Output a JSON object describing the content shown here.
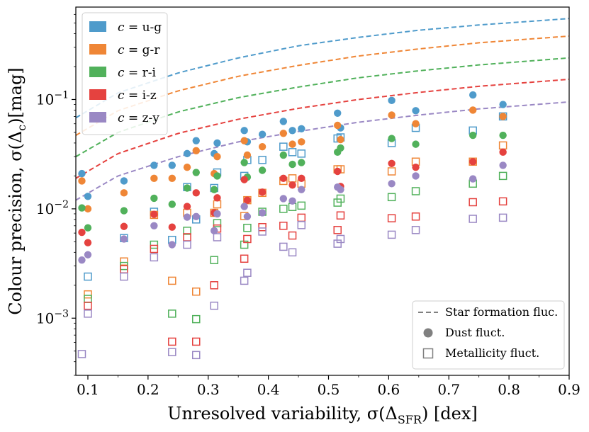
{
  "chart_data": {
    "type": "scatter",
    "xlabel": "Unresolved variability, σ(ΔSFR) [dex]",
    "xlabel_parts": {
      "prefix": "Unresolved variability, σ(Δ",
      "sub": "SFR",
      "suffix": ") [dex]"
    },
    "ylabel": "Colour precision, σ(Δc)[mag]",
    "ylabel_parts": {
      "prefix": "Colour precision, σ(Δ",
      "sub": "c",
      "suffix": ")[mag]"
    },
    "xlim": [
      0.08,
      0.9
    ],
    "ylim": [
      0.0003,
      0.7
    ],
    "yscale": "log",
    "x_ticks": [
      0.1,
      0.2,
      0.3,
      0.4,
      0.5,
      0.6,
      0.7,
      0.8,
      0.9
    ],
    "x_tick_labels": [
      "0.1",
      "0.2",
      "0.3",
      "0.4",
      "0.5",
      "0.6",
      "0.7",
      "0.8",
      "0.9"
    ],
    "y_ticks": [
      0.001,
      0.01,
      0.1
    ],
    "y_tick_labels": [
      {
        "base": "10",
        "exp": "−3"
      },
      {
        "base": "10",
        "exp": "−2"
      },
      {
        "base": "10",
        "exp": "−1"
      }
    ],
    "colors": {
      "u-g": "#4f9bcb",
      "g-r": "#ef8636",
      "r-i": "#51b15b",
      "i-z": "#e5423f",
      "z-y": "#9a88c4",
      "legend_line": "#808080"
    },
    "legend_top": {
      "position": "top-left",
      "entries": [
        {
          "key": "u-g",
          "prefix": "c",
          "text": " = u-g"
        },
        {
          "key": "g-r",
          "prefix": "c",
          "text": " = g-r"
        },
        {
          "key": "r-i",
          "prefix": "c",
          "text": " = r-i"
        },
        {
          "key": "i-z",
          "prefix": "c",
          "text": " = i-z"
        },
        {
          "key": "z-y",
          "prefix": "c",
          "text": " = z-y"
        }
      ]
    },
    "legend_bottom": {
      "position": "bottom-right",
      "entries": [
        {
          "marker": "dash",
          "label": "Star formation fluc."
        },
        {
          "marker": "circle",
          "label": "Dust fluct."
        },
        {
          "marker": "square",
          "label": "Metallicity fluct."
        }
      ]
    },
    "star_formation_curves": [
      {
        "key": "u-g",
        "x": [
          0.08,
          0.15,
          0.25,
          0.35,
          0.45,
          0.55,
          0.65,
          0.75,
          0.9
        ],
        "y": [
          0.068,
          0.115,
          0.175,
          0.24,
          0.31,
          0.37,
          0.43,
          0.48,
          0.55
        ]
      },
      {
        "key": "g-r",
        "x": [
          0.08,
          0.15,
          0.25,
          0.35,
          0.45,
          0.55,
          0.65,
          0.75,
          0.9
        ],
        "y": [
          0.047,
          0.079,
          0.12,
          0.163,
          0.205,
          0.25,
          0.29,
          0.33,
          0.38
        ]
      },
      {
        "key": "r-i",
        "x": [
          0.08,
          0.15,
          0.25,
          0.35,
          0.45,
          0.55,
          0.65,
          0.75,
          0.9
        ],
        "y": [
          0.03,
          0.05,
          0.077,
          0.104,
          0.13,
          0.158,
          0.183,
          0.207,
          0.24
        ]
      },
      {
        "key": "i-z",
        "x": [
          0.08,
          0.15,
          0.25,
          0.35,
          0.45,
          0.55,
          0.65,
          0.75,
          0.9
        ],
        "y": [
          0.019,
          0.032,
          0.049,
          0.066,
          0.083,
          0.1,
          0.116,
          0.132,
          0.153
        ]
      },
      {
        "key": "z-y",
        "x": [
          0.08,
          0.15,
          0.25,
          0.35,
          0.45,
          0.55,
          0.65,
          0.75,
          0.9
        ],
        "y": [
          0.012,
          0.02,
          0.03,
          0.041,
          0.051,
          0.062,
          0.072,
          0.082,
          0.095
        ]
      }
    ],
    "x_points": [
      0.09,
      0.1,
      0.16,
      0.21,
      0.24,
      0.265,
      0.28,
      0.31,
      0.315,
      0.36,
      0.365,
      0.39,
      0.425,
      0.44,
      0.455,
      0.515,
      0.52,
      0.605,
      0.645,
      0.74,
      0.79
    ],
    "series": [
      {
        "key": "u-g",
        "name": "c = u-g",
        "dust": [
          0.021,
          0.013,
          0.018,
          0.025,
          0.025,
          0.032,
          0.042,
          0.032,
          0.04,
          0.052,
          0.041,
          0.048,
          0.063,
          0.052,
          0.054,
          0.075,
          0.055,
          0.098,
          0.079,
          0.11,
          0.09
        ],
        "metallicity": [
          null,
          0.0024,
          0.0054,
          0.0094,
          0.0052,
          0.0158,
          0.008,
          0.0155,
          0.0215,
          0.02,
          0.028,
          0.028,
          0.037,
          0.033,
          0.032,
          0.044,
          0.045,
          0.04,
          0.055,
          0.052,
          0.07
        ]
      },
      {
        "key": "g-r",
        "name": "c = g-r",
        "dust": [
          0.018,
          0.01,
          0.014,
          0.019,
          0.019,
          0.024,
          0.034,
          0.021,
          0.03,
          0.042,
          0.031,
          0.037,
          0.049,
          0.039,
          0.041,
          0.058,
          0.043,
          0.072,
          0.06,
          0.08,
          0.07
        ],
        "metallicity": [
          null,
          0.00165,
          0.0033,
          0.0088,
          0.0022,
          0.0092,
          0.00175,
          0.0092,
          0.011,
          0.0086,
          0.012,
          0.014,
          0.018,
          0.019,
          0.017,
          0.023,
          0.023,
          0.022,
          0.027,
          0.027,
          0.038
        ]
      },
      {
        "key": "r-i",
        "name": "c = r-i",
        "dust": [
          0.0102,
          0.0067,
          0.0096,
          0.0125,
          0.011,
          0.0155,
          0.0215,
          0.015,
          0.02,
          0.0265,
          0.0195,
          0.0225,
          0.031,
          0.0255,
          0.0265,
          0.033,
          0.036,
          0.044,
          0.039,
          0.047,
          0.047
        ],
        "metallicity": [
          null,
          0.0015,
          0.003,
          0.0047,
          0.0011,
          0.0063,
          0.00098,
          0.0034,
          0.0074,
          0.0047,
          0.0067,
          0.0094,
          0.01,
          0.0104,
          0.0107,
          0.0114,
          0.0124,
          0.0128,
          0.0145,
          0.017,
          0.02
        ]
      },
      {
        "key": "i-z",
        "name": "c = i-z",
        "dust": [
          0.0061,
          0.0049,
          0.0069,
          0.0089,
          0.0068,
          0.0105,
          0.014,
          0.0092,
          0.0126,
          0.0185,
          0.012,
          0.0142,
          0.019,
          0.0165,
          0.019,
          0.022,
          0.016,
          0.026,
          0.024,
          0.027,
          0.033
        ],
        "metallicity": [
          null,
          0.0013,
          0.0028,
          0.0043,
          0.00061,
          0.0055,
          0.00061,
          0.002,
          0.0066,
          0.0035,
          0.0053,
          0.0068,
          0.007,
          0.0057,
          0.0083,
          0.0064,
          0.0087,
          0.0082,
          0.0085,
          0.0115,
          0.0117
        ]
      },
      {
        "key": "z-y",
        "name": "c = z-y",
        "dust": [
          0.0034,
          0.0038,
          0.0053,
          0.007,
          0.0047,
          0.0084,
          0.0085,
          0.0063,
          0.009,
          0.0105,
          0.0085,
          0.0092,
          0.0124,
          0.0118,
          0.015,
          0.0158,
          0.015,
          0.017,
          0.02,
          0.0188,
          0.025
        ],
        "metallicity": [
          0.00047,
          0.0011,
          0.0024,
          0.0036,
          0.00049,
          0.0047,
          0.00046,
          0.0013,
          0.0055,
          0.0022,
          0.0026,
          0.0062,
          0.0045,
          0.004,
          0.0071,
          0.0048,
          0.0053,
          0.0058,
          0.0064,
          0.0081,
          0.0083
        ]
      }
    ]
  }
}
